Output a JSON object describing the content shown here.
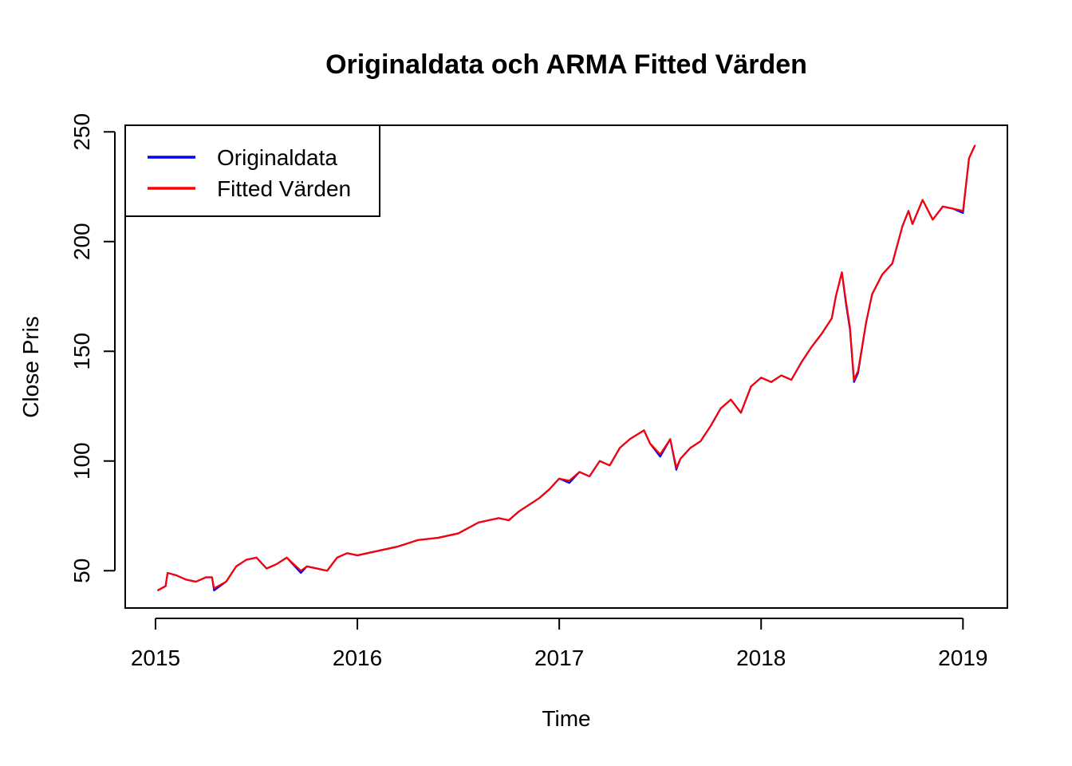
{
  "chart_data": {
    "type": "line",
    "title": "Originaldata och ARMA Fitted Värden",
    "xlabel": "Time",
    "ylabel": "Close Pris",
    "xlim": [
      2014.85,
      2019.22
    ],
    "ylim": [
      33,
      253
    ],
    "grid": false,
    "x_ticks": [
      2015,
      2016,
      2017,
      2018,
      2019
    ],
    "x_tick_labels": [
      "2015",
      "2016",
      "2017",
      "2018",
      "2019"
    ],
    "y_ticks": [
      50,
      100,
      150,
      200,
      250
    ],
    "y_tick_labels": [
      "50",
      "100",
      "150",
      "200",
      "250"
    ],
    "legend": {
      "position": "top-left",
      "entries": [
        {
          "label": "Originaldata",
          "color": "#0000ff"
        },
        {
          "label": "Fitted Värden",
          "color": "#ff0000"
        }
      ]
    },
    "x": [
      2015.01,
      2015.05,
      2015.06,
      2015.1,
      2015.15,
      2015.2,
      2015.25,
      2015.28,
      2015.29,
      2015.35,
      2015.4,
      2015.45,
      2015.5,
      2015.55,
      2015.6,
      2015.65,
      2015.72,
      2015.75,
      2015.8,
      2015.85,
      2015.9,
      2015.95,
      2016.0,
      2016.1,
      2016.2,
      2016.3,
      2016.4,
      2016.5,
      2016.6,
      2016.7,
      2016.75,
      2016.8,
      2016.9,
      2016.95,
      2017.0,
      2017.05,
      2017.1,
      2017.15,
      2017.2,
      2017.25,
      2017.3,
      2017.35,
      2017.42,
      2017.45,
      2017.5,
      2017.55,
      2017.58,
      2017.6,
      2017.65,
      2017.7,
      2017.75,
      2017.8,
      2017.85,
      2017.9,
      2017.95,
      2018.0,
      2018.05,
      2018.1,
      2018.15,
      2018.2,
      2018.25,
      2018.3,
      2018.35,
      2018.37,
      2018.4,
      2018.42,
      2018.44,
      2018.46,
      2018.48,
      2018.52,
      2018.55,
      2018.6,
      2018.65,
      2018.7,
      2018.73,
      2018.75,
      2018.8,
      2018.85,
      2018.9,
      2018.95,
      2019.0,
      2019.03,
      2019.06
    ],
    "series": [
      {
        "name": "Originaldata",
        "color": "#0000ff",
        "values": [
          41,
          43,
          49,
          48,
          46,
          45,
          47,
          47,
          41,
          45,
          52,
          55,
          56,
          51,
          53,
          56,
          49,
          52,
          51,
          50,
          56,
          58,
          57,
          59,
          61,
          64,
          65,
          67,
          72,
          74,
          73,
          77,
          83,
          87,
          92,
          90,
          95,
          93,
          100,
          98,
          106,
          110,
          114,
          108,
          102,
          110,
          96,
          101,
          106,
          109,
          116,
          124,
          128,
          122,
          134,
          138,
          136,
          139,
          137,
          145,
          152,
          158,
          165,
          175,
          186,
          172,
          160,
          136,
          140,
          163,
          176,
          185,
          190,
          207,
          214,
          208,
          219,
          210,
          216,
          215,
          213,
          238,
          244
        ]
      },
      {
        "name": "Fitted Värden",
        "color": "#ff0000",
        "values": [
          41,
          43,
          49,
          48,
          46,
          45,
          47,
          47,
          42,
          45,
          52,
          55,
          56,
          51,
          53,
          56,
          50,
          52,
          51,
          50,
          56,
          58,
          57,
          59,
          61,
          64,
          65,
          67,
          72,
          74,
          73,
          77,
          83,
          87,
          92,
          91,
          95,
          93,
          100,
          98,
          106,
          110,
          114,
          108,
          103,
          110,
          97,
          101,
          106,
          109,
          116,
          124,
          128,
          122,
          134,
          138,
          136,
          139,
          137,
          145,
          152,
          158,
          165,
          175,
          186,
          173,
          161,
          137,
          141,
          163,
          176,
          185,
          190,
          207,
          214,
          208,
          219,
          210,
          216,
          215,
          214,
          238,
          244
        ]
      }
    ]
  }
}
